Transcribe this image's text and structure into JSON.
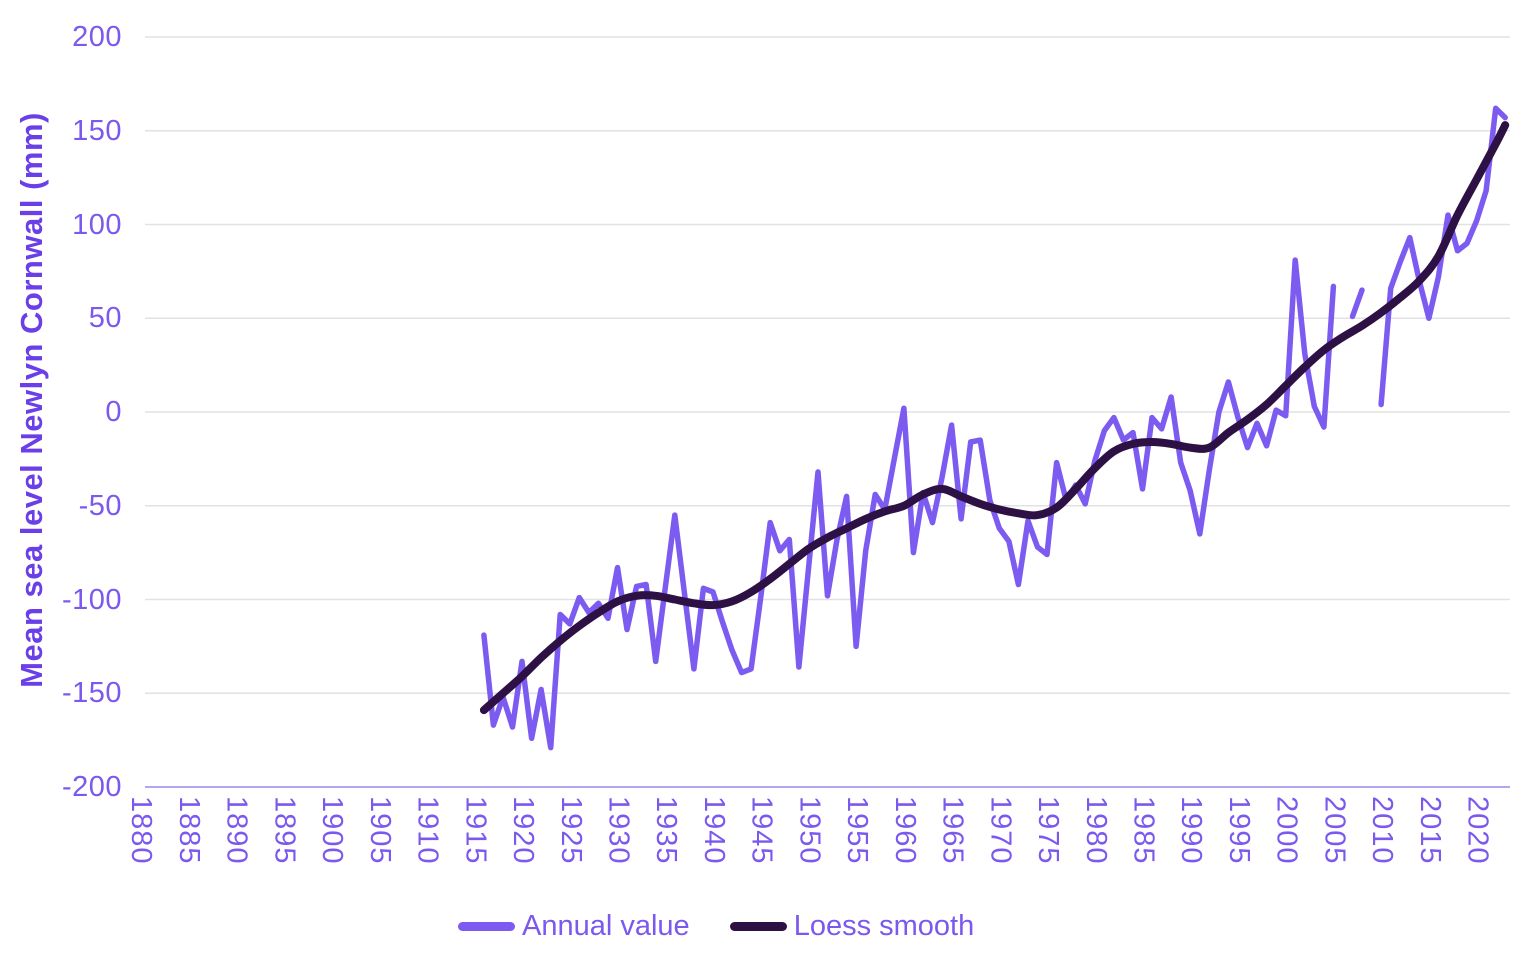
{
  "colors": {
    "annual_line": "#7c5bf1",
    "loess_line": "#2d1145",
    "tick_text": "#7b58ee",
    "axis_title_text": "#6b3fe8",
    "gridline": "#e2e2e2",
    "axis_line": "#b3a5f0",
    "background": "#ffffff"
  },
  "y_axis": {
    "title": "Mean sea level Newlyn Cornwall (mm)",
    "ticks": [
      200,
      150,
      100,
      50,
      0,
      -50,
      -100,
      -150,
      -200
    ]
  },
  "x_axis": {
    "ticks": [
      1880,
      1885,
      1890,
      1895,
      1900,
      1905,
      1910,
      1915,
      1920,
      1925,
      1930,
      1935,
      1940,
      1945,
      1950,
      1955,
      1960,
      1965,
      1970,
      1975,
      1980,
      1985,
      1990,
      1995,
      2000,
      2005,
      2010,
      2015,
      2020
    ]
  },
  "legend": {
    "items": [
      {
        "label": "Annual value",
        "color": "#7c5bf1"
      },
      {
        "label": "Loess smooth",
        "color": "#2d1145"
      }
    ]
  },
  "chart_data": {
    "type": "line",
    "title": "",
    "xlabel": "",
    "ylabel": "Mean sea level Newlyn Cornwall (mm)",
    "xlim": [
      1880.5,
      2023.5
    ],
    "ylim": [
      -200,
      200
    ],
    "grid": "horizontal",
    "legend_position": "bottom",
    "series": [
      {
        "name": "Annual value",
        "color": "#7c5bf1",
        "stroke_width": 5.5,
        "start_year": 1916,
        "note": "null = missing year (gaps at 2006 and 2009)",
        "values": [
          -119,
          -167,
          -152,
          -168,
          -133,
          -174,
          -148,
          -179,
          -108,
          -113,
          -99,
          -107,
          -102,
          -110,
          -83,
          -116,
          -93,
          -92,
          -133,
          -94,
          -55,
          -96,
          -137,
          -94,
          -96,
          -112,
          -127,
          -139,
          -137,
          -99,
          -59,
          -74,
          -68,
          -136,
          -84,
          -32,
          -98,
          -68,
          -45,
          -125,
          -74,
          -44,
          -52,
          -25,
          2,
          -75,
          -43,
          -59,
          -35,
          -7,
          -57,
          -16,
          -15,
          -47,
          -62,
          -69,
          -92,
          -58,
          -72,
          -76,
          -27,
          -47,
          -39,
          -49,
          -26,
          -10,
          -3,
          -15,
          -11,
          -41,
          -3,
          -9,
          8,
          -27,
          -42,
          -65,
          -31,
          0,
          16,
          -3,
          -19,
          -6,
          -18,
          1,
          -2,
          81,
          31,
          3,
          -8,
          67,
          null,
          51,
          65,
          null,
          4,
          66,
          80,
          93,
          70,
          50,
          72,
          105,
          86,
          90,
          102,
          118,
          162,
          157
        ]
      },
      {
        "name": "Loess smooth",
        "color": "#2d1145",
        "stroke_width": 8,
        "points": [
          [
            1916,
            -159
          ],
          [
            1918,
            -150
          ],
          [
            1920,
            -141
          ],
          [
            1922,
            -131
          ],
          [
            1924,
            -122
          ],
          [
            1926,
            -114
          ],
          [
            1928,
            -107
          ],
          [
            1930,
            -101
          ],
          [
            1932,
            -98
          ],
          [
            1934,
            -98
          ],
          [
            1936,
            -100
          ],
          [
            1938,
            -102
          ],
          [
            1940,
            -103
          ],
          [
            1942,
            -101
          ],
          [
            1944,
            -96
          ],
          [
            1946,
            -89
          ],
          [
            1948,
            -81
          ],
          [
            1950,
            -73
          ],
          [
            1952,
            -67
          ],
          [
            1954,
            -62
          ],
          [
            1956,
            -57
          ],
          [
            1958,
            -53
          ],
          [
            1960,
            -50
          ],
          [
            1962,
            -44
          ],
          [
            1964,
            -41
          ],
          [
            1966,
            -45
          ],
          [
            1968,
            -49
          ],
          [
            1970,
            -52
          ],
          [
            1972,
            -54
          ],
          [
            1974,
            -55
          ],
          [
            1976,
            -51
          ],
          [
            1978,
            -41
          ],
          [
            1980,
            -30
          ],
          [
            1982,
            -21
          ],
          [
            1984,
            -17
          ],
          [
            1986,
            -16
          ],
          [
            1988,
            -17
          ],
          [
            1990,
            -19
          ],
          [
            1992,
            -19
          ],
          [
            1994,
            -11
          ],
          [
            1996,
            -4
          ],
          [
            1998,
            4
          ],
          [
            2000,
            14
          ],
          [
            2002,
            24
          ],
          [
            2004,
            33
          ],
          [
            2006,
            40
          ],
          [
            2008,
            46
          ],
          [
            2010,
            53
          ],
          [
            2012,
            61
          ],
          [
            2014,
            70
          ],
          [
            2016,
            83
          ],
          [
            2018,
            105
          ],
          [
            2020,
            124
          ],
          [
            2022,
            143
          ],
          [
            2023,
            153
          ]
        ]
      }
    ]
  }
}
